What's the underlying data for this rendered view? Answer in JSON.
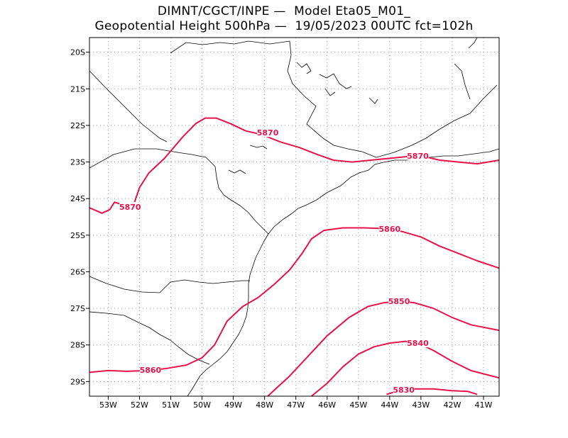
{
  "header": {
    "line1": "DIMNT/CGCT/INPE —  Model Eta05_M01_",
    "line2": "Geopotential Height 500hPa —  19/05/2023 00UTC fct=102h"
  },
  "map": {
    "lon_range": [
      -53.6,
      -40.5
    ],
    "lat_range": [
      -29.4,
      -19.6
    ],
    "grid": true,
    "grid_style": "dotted",
    "contour_color": "#e8114a",
    "coast_color": "#000000"
  },
  "x_ticks": [
    "53W",
    "52W",
    "51W",
    "50W",
    "49W",
    "48W",
    "47W",
    "46W",
    "45W",
    "44W",
    "43W",
    "42W",
    "41W"
  ],
  "x_tick_values": [
    -53,
    -52,
    -51,
    -50,
    -49,
    -48,
    -47,
    -46,
    -45,
    -44,
    -43,
    -42,
    -41
  ],
  "y_ticks": [
    "20S",
    "21S",
    "22S",
    "23S",
    "24S",
    "25S",
    "26S",
    "27S",
    "28S",
    "29S"
  ],
  "y_tick_values": [
    -20,
    -21,
    -22,
    -23,
    -24,
    -25,
    -26,
    -27,
    -28,
    -29
  ],
  "contours": [
    {
      "level": "5870",
      "points": [
        [
          -53.6,
          -24.25
        ],
        [
          -53.2,
          -24.4
        ],
        [
          -52.95,
          -24.3
        ],
        [
          -52.8,
          -24.1
        ],
        [
          -52.6,
          -24.15
        ],
        [
          -52.2,
          -24.2
        ],
        [
          -52.0,
          -23.7
        ],
        [
          -51.7,
          -23.3
        ],
        [
          -51.2,
          -22.9
        ],
        [
          -50.6,
          -22.3
        ],
        [
          -50.2,
          -21.95
        ],
        [
          -49.9,
          -21.8
        ],
        [
          -49.55,
          -21.8
        ],
        [
          -49.1,
          -21.95
        ],
        [
          -48.6,
          -22.15
        ],
        [
          -48.1,
          -22.25
        ],
        [
          -47.5,
          -22.45
        ],
        [
          -46.9,
          -22.6
        ],
        [
          -46.3,
          -22.8
        ],
        [
          -45.8,
          -22.95
        ],
        [
          -45.2,
          -23.0
        ],
        [
          -44.6,
          -22.95
        ],
        [
          -44.0,
          -22.9
        ],
        [
          -43.4,
          -22.85
        ],
        [
          -42.9,
          -22.85
        ],
        [
          -42.4,
          -22.95
        ],
        [
          -41.8,
          -23.0
        ],
        [
          -41.2,
          -23.05
        ],
        [
          -40.5,
          -22.95
        ]
      ],
      "labels": [
        {
          "lon": -52.3,
          "lat": -24.23
        },
        {
          "lon": -47.9,
          "lat": -22.2
        },
        {
          "lon": -43.1,
          "lat": -22.83
        }
      ]
    },
    {
      "level": "5860",
      "points": [
        [
          -53.6,
          -28.75
        ],
        [
          -53.0,
          -28.7
        ],
        [
          -52.4,
          -28.72
        ],
        [
          -51.8,
          -28.7
        ],
        [
          -51.2,
          -28.65
        ],
        [
          -50.5,
          -28.55
        ],
        [
          -50.0,
          -28.35
        ],
        [
          -49.6,
          -28.0
        ],
        [
          -49.2,
          -27.35
        ],
        [
          -48.7,
          -26.95
        ],
        [
          -48.2,
          -26.7
        ],
        [
          -47.7,
          -26.35
        ],
        [
          -47.2,
          -25.95
        ],
        [
          -46.8,
          -25.5
        ],
        [
          -46.5,
          -25.1
        ],
        [
          -46.1,
          -24.87
        ],
        [
          -45.5,
          -24.8
        ],
        [
          -44.8,
          -24.8
        ],
        [
          -44.2,
          -24.82
        ],
        [
          -43.6,
          -24.9
        ],
        [
          -43.0,
          -25.05
        ],
        [
          -42.4,
          -25.3
        ],
        [
          -41.8,
          -25.5
        ],
        [
          -41.2,
          -25.7
        ],
        [
          -40.5,
          -25.9
        ]
      ],
      "labels": [
        {
          "lon": -51.65,
          "lat": -28.68
        },
        {
          "lon": -44.0,
          "lat": -24.83
        }
      ]
    },
    {
      "level": "5850",
      "points": [
        [
          -47.9,
          -29.4
        ],
        [
          -47.2,
          -28.85
        ],
        [
          -46.6,
          -28.3
        ],
        [
          -46.0,
          -27.75
        ],
        [
          -45.3,
          -27.25
        ],
        [
          -44.7,
          -26.95
        ],
        [
          -44.2,
          -26.85
        ],
        [
          -43.7,
          -26.8
        ],
        [
          -43.2,
          -26.85
        ],
        [
          -42.6,
          -27.0
        ],
        [
          -42.0,
          -27.25
        ],
        [
          -41.4,
          -27.45
        ],
        [
          -40.5,
          -27.6
        ]
      ],
      "labels": [
        {
          "lon": -43.7,
          "lat": -26.8
        }
      ]
    },
    {
      "level": "5840",
      "points": [
        [
          -46.5,
          -29.4
        ],
        [
          -46.0,
          -29.05
        ],
        [
          -45.5,
          -28.6
        ],
        [
          -45.0,
          -28.25
        ],
        [
          -44.5,
          -28.05
        ],
        [
          -44.0,
          -27.95
        ],
        [
          -43.5,
          -27.9
        ],
        [
          -43.1,
          -27.95
        ],
        [
          -42.6,
          -28.15
        ],
        [
          -42.0,
          -28.45
        ],
        [
          -41.4,
          -28.7
        ],
        [
          -40.5,
          -28.9
        ]
      ],
      "labels": [
        {
          "lon": -43.1,
          "lat": -27.95
        }
      ]
    },
    {
      "level": "5830",
      "points": [
        [
          -44.1,
          -29.35
        ],
        [
          -43.7,
          -29.25
        ],
        [
          -43.2,
          -29.2
        ],
        [
          -42.6,
          -29.2
        ],
        [
          -42.0,
          -29.25
        ],
        [
          -41.5,
          -29.27
        ],
        [
          -41.2,
          -29.35
        ]
      ],
      "labels": [
        {
          "lon": -43.55,
          "lat": -29.23
        }
      ]
    }
  ]
}
